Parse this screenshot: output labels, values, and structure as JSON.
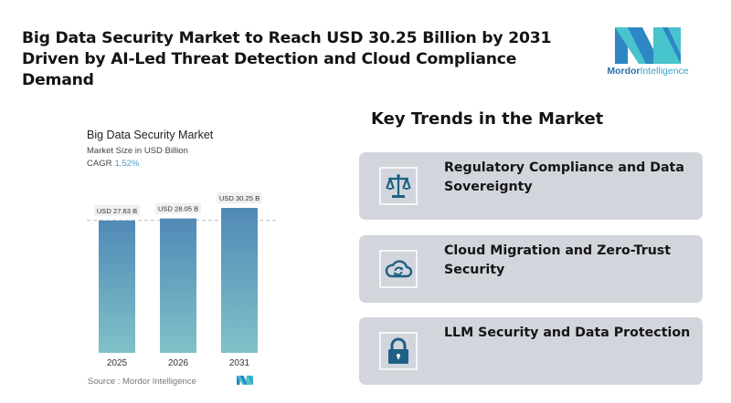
{
  "headline": "Big Data Security Market to Reach USD 30.25 Billion by 2031 Driven by AI-Led Threat Detection and Cloud Compliance Demand",
  "brand": {
    "name_bold": "Mordor",
    "name_light": "Intelligence",
    "icon": "mordor-intelligence-logo",
    "colors": {
      "dark": "#2f86c4",
      "light": "#48c4cc"
    }
  },
  "chart_data": {
    "type": "bar",
    "title": "Big Data Security Market",
    "subtitle": "Market Size in USD Billion",
    "cagr_label": "CAGR",
    "cagr_value": "1.52%",
    "categories": [
      "2025",
      "2026",
      "2031"
    ],
    "values": [
      27.63,
      28.05,
      30.25
    ],
    "data_labels": [
      "USD 27.63 B",
      "USD 28.05 B",
      "USD 30.25 B"
    ],
    "xlabel": "",
    "ylabel": "",
    "ylim": [
      0,
      34
    ],
    "grid": false,
    "reference_line": "dashed line at 2025 value",
    "bar_gradient": {
      "top": "#5189b6",
      "bottom": "#7fc2c9"
    },
    "source": "Source :  Mordor Intelligence"
  },
  "trends": {
    "title": "Key Trends in the Market",
    "items": [
      {
        "label": "Regulatory Compliance and Data Sovereignty",
        "icon": "scales-icon"
      },
      {
        "label": "Cloud Migration and Zero-Trust Security",
        "icon": "cloud-sync-icon"
      },
      {
        "label": "LLM Security and Data Protection",
        "icon": "padlock-icon"
      }
    ],
    "icon_color": "#1f5f85"
  }
}
